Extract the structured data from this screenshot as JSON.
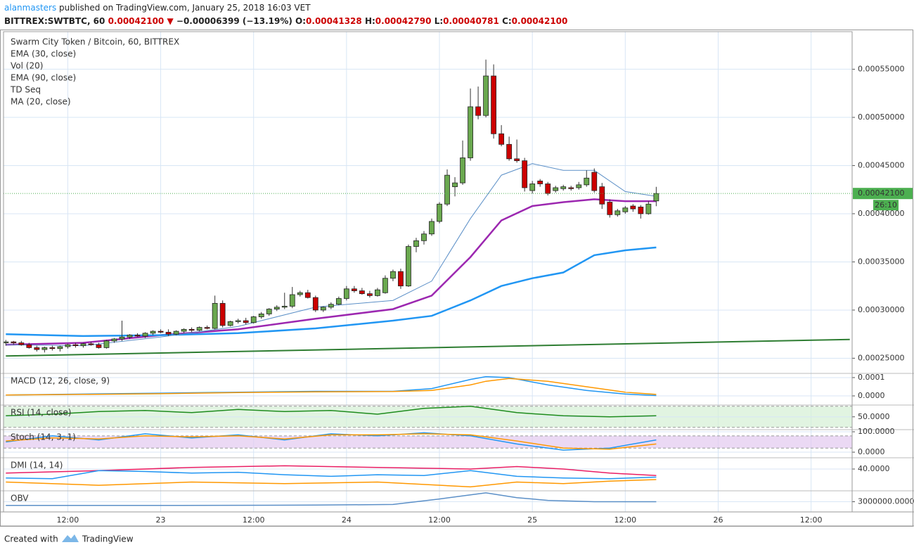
{
  "header": {
    "user": "alanmasters",
    "published": "published on TradingView.com, January 25, 2018 16:03 VET",
    "symbol": "BITTREX:SWTBTC, 60",
    "price": "0.00042100",
    "arrow": "▼",
    "change": "−0.00006399 (−13.19%)",
    "quote": [
      {
        "label": "O:",
        "value": "0.00041328"
      },
      {
        "label": "H:",
        "value": "0.00042790"
      },
      {
        "label": "L:",
        "value": "0.00040781"
      },
      {
        "label": "C:",
        "value": "0.00042100"
      }
    ]
  },
  "chart_data": {
    "type": "candlestick",
    "title": "Swarm City Token / Bitcoin, 60, BITTREX",
    "legend": [
      "EMA (30, close)",
      "Vol (20)",
      "EMA (90, close)",
      "TD Seq",
      "MA (20, close)"
    ],
    "up_color": "#6aa84f",
    "down_color": "#cc0000",
    "xlim": [
      -0.3,
      109.3
    ],
    "xticks": [
      {
        "value": 8,
        "label": "12:00"
      },
      {
        "value": 20,
        "label": "23"
      },
      {
        "value": 32,
        "label": "12:00"
      },
      {
        "value": 44,
        "label": "24"
      },
      {
        "value": 56,
        "label": "12:00"
      },
      {
        "value": 68,
        "label": "25"
      },
      {
        "value": 80,
        "label": "12:00"
      },
      {
        "value": 92,
        "label": "26"
      },
      {
        "value": 104,
        "label": "12:00"
      }
    ],
    "ylim": [
      0.000235,
      0.000589
    ],
    "yticks": [
      {
        "value": 0.00025,
        "label": "0.00025000"
      },
      {
        "value": 0.0003,
        "label": "0.00030000"
      },
      {
        "value": 0.00035,
        "label": "0.00035000"
      },
      {
        "value": 0.0004,
        "label": "0.00040000"
      },
      {
        "value": 0.00045,
        "label": "0.00045000"
      },
      {
        "value": 0.0005,
        "label": "0.00050000"
      },
      {
        "value": 0.00055,
        "label": "0.00055000"
      }
    ],
    "price_tag": "0.00042100",
    "countdown": "26:10",
    "candles": [
      [
        0.000266,
        0.000269,
        0.000263,
        0.000267
      ],
      [
        0.000267,
        0.000268,
        0.000264,
        0.000266
      ],
      [
        0.000266,
        0.000268,
        0.000263,
        0.000264
      ],
      [
        0.000264,
        0.000266,
        0.00026,
        0.000261
      ],
      [
        0.000261,
        0.000263,
        0.000257,
        0.000259
      ],
      [
        0.000259,
        0.000262,
        0.000256,
        0.000261
      ],
      [
        0.000261,
        0.000263,
        0.000258,
        0.00026
      ],
      [
        0.00026,
        0.000263,
        0.000257,
        0.000262
      ],
      [
        0.000262,
        0.000265,
        0.00026,
        0.000264
      ],
      [
        0.000264,
        0.000266,
        0.000261,
        0.000263
      ],
      [
        0.000263,
        0.000266,
        0.000261,
        0.000265
      ],
      [
        0.000265,
        0.000267,
        0.000263,
        0.000264
      ],
      [
        0.000264,
        0.000266,
        0.00026,
        0.000261
      ],
      [
        0.000261,
        0.000269,
        0.00026,
        0.000268
      ],
      [
        0.000268,
        0.000271,
        0.000266,
        0.00027
      ],
      [
        0.00027,
        0.000289,
        0.000268,
        0.000272
      ],
      [
        0.000272,
        0.000275,
        0.00027,
        0.000274
      ],
      [
        0.000274,
        0.000276,
        0.000272,
        0.000273
      ],
      [
        0.000273,
        0.000277,
        0.000271,
        0.000276
      ],
      [
        0.000276,
        0.000279,
        0.000274,
        0.000278
      ],
      [
        0.000278,
        0.00028,
        0.000276,
        0.000277
      ],
      [
        0.000277,
        0.00028,
        0.000273,
        0.000275
      ],
      [
        0.000275,
        0.000279,
        0.000274,
        0.000278
      ],
      [
        0.000278,
        0.000281,
        0.000276,
        0.00028
      ],
      [
        0.00028,
        0.000282,
        0.000277,
        0.000279
      ],
      [
        0.000279,
        0.000283,
        0.000278,
        0.000282
      ],
      [
        0.000282,
        0.000284,
        0.00028,
        0.000281
      ],
      [
        0.000281,
        0.000315,
        0.00028,
        0.000307
      ],
      [
        0.000307,
        0.00031,
        0.000282,
        0.000284
      ],
      [
        0.000284,
        0.000289,
        0.000283,
        0.000288
      ],
      [
        0.000288,
        0.000291,
        0.000286,
        0.000289
      ],
      [
        0.000289,
        0.000292,
        0.000285,
        0.000287
      ],
      [
        0.000287,
        0.000294,
        0.000286,
        0.000293
      ],
      [
        0.000293,
        0.000298,
        0.000291,
        0.000296
      ],
      [
        0.000296,
        0.000302,
        0.000294,
        0.000301
      ],
      [
        0.000301,
        0.000305,
        0.000299,
        0.000303
      ],
      [
        0.000303,
        0.000318,
        0.000301,
        0.000304
      ],
      [
        0.000304,
        0.000324,
        0.000302,
        0.000316
      ],
      [
        0.000316,
        0.00032,
        0.000314,
        0.000318
      ],
      [
        0.000318,
        0.000321,
        0.000312,
        0.000313
      ],
      [
        0.000313,
        0.000315,
        0.000298,
        0.0003
      ],
      [
        0.0003,
        0.000304,
        0.000298,
        0.000303
      ],
      [
        0.000303,
        0.000308,
        0.000301,
        0.000306
      ],
      [
        0.000306,
        0.000314,
        0.000305,
        0.000312
      ],
      [
        0.000312,
        0.000325,
        0.00031,
        0.000322
      ],
      [
        0.000322,
        0.000325,
        0.000318,
        0.00032
      ],
      [
        0.00032,
        0.000323,
        0.000316,
        0.000317
      ],
      [
        0.000317,
        0.00032,
        0.000313,
        0.000315
      ],
      [
        0.000315,
        0.000323,
        0.000314,
        0.000321
      ],
      [
        0.000318,
        0.000336,
        0.000317,
        0.000333
      ],
      [
        0.000333,
        0.000342,
        0.00033,
        0.00034
      ],
      [
        0.00034,
        0.000343,
        0.000322,
        0.000325
      ],
      [
        0.000325,
        0.000368,
        0.000324,
        0.000366
      ],
      [
        0.000366,
        0.000375,
        0.00036,
        0.000372
      ],
      [
        0.000372,
        0.000382,
        0.000368,
        0.000379
      ],
      [
        0.000379,
        0.000395,
        0.000377,
        0.000392
      ],
      [
        0.000392,
        0.000412,
        0.00039,
        0.00041
      ],
      [
        0.00041,
        0.000446,
        0.000408,
        0.00044
      ],
      [
        0.000428,
        0.000438,
        0.000418,
        0.000432
      ],
      [
        0.000432,
        0.000476,
        0.00043,
        0.000458
      ],
      [
        0.000458,
        0.00053,
        0.000455,
        0.000511
      ],
      [
        0.000511,
        0.000532,
        0.000498,
        0.000502
      ],
      [
        0.000502,
        0.00056,
        0.0005,
        0.000543
      ],
      [
        0.000543,
        0.000555,
        0.000478,
        0.000483
      ],
      [
        0.000483,
        0.000492,
        0.00047,
        0.000472
      ],
      [
        0.000472,
        0.00048,
        0.000455,
        0.000457
      ],
      [
        0.000457,
        0.000477,
        0.000453,
        0.000455
      ],
      [
        0.000455,
        0.000458,
        0.000423,
        0.000427
      ],
      [
        0.000424,
        0.000434,
        0.000421,
        0.000431
      ],
      [
        0.000434,
        0.000436,
        0.000428,
        0.000431
      ],
      [
        0.000431,
        0.000433,
        0.000419,
        0.000421
      ],
      [
        0.000424,
        0.000429,
        0.000422,
        0.000427
      ],
      [
        0.000426,
        0.00043,
        0.000424,
        0.000428
      ],
      [
        0.000427,
        0.000429,
        0.000424,
        0.000426
      ],
      [
        0.000427,
        0.000433,
        0.000425,
        0.00043
      ],
      [
        0.00043,
        0.000445,
        0.000428,
        0.000437
      ],
      [
        0.000443,
        0.000447,
        0.000422,
        0.000424
      ],
      [
        0.000428,
        0.000432,
        0.000405,
        0.00041
      ],
      [
        0.000412,
        0.000415,
        0.000396,
        0.000399
      ],
      [
        0.000399,
        0.000405,
        0.000397,
        0.000403
      ],
      [
        0.000402,
        0.000408,
        0.0004,
        0.000406
      ],
      [
        0.000408,
        0.00041,
        0.000402,
        0.000405
      ],
      [
        0.000407,
        0.000409,
        0.000395,
        0.0004
      ],
      [
        0.0004,
        0.000413,
        0.000399,
        0.00041
      ],
      [
        0.00041328,
        0.0004279,
        0.00040781,
        0.000421
      ]
    ],
    "lines": [
      {
        "color": "#9c27b0",
        "x": [
          0,
          10,
          20,
          30,
          40,
          50,
          55,
          60,
          64,
          68,
          72,
          76,
          80,
          84
        ],
        "values": [
          0.000264,
          0.000266,
          0.000274,
          0.00028,
          0.000291,
          0.000301,
          0.000315,
          0.000355,
          0.000393,
          0.000408,
          0.000412,
          0.000415,
          0.000413,
          0.000413
        ]
      },
      {
        "color": "#2196f3",
        "x": [
          0,
          10,
          20,
          30,
          40,
          50,
          55,
          60,
          64,
          68,
          72,
          76,
          80,
          84
        ],
        "values": [
          0.000275,
          0.000273,
          0.000274,
          0.000276,
          0.000281,
          0.000289,
          0.000294,
          0.00031,
          0.000325,
          0.000333,
          0.000339,
          0.000357,
          0.000362,
          0.000365
        ]
      },
      {
        "color": "#5b8fc7",
        "x": [
          0,
          10,
          20,
          30,
          40,
          50,
          55,
          60,
          64,
          68,
          72,
          76,
          80,
          84
        ],
        "values": [
          0.000264,
          0.000263,
          0.000272,
          0.000283,
          0.000303,
          0.00031,
          0.00033,
          0.000395,
          0.00044,
          0.000452,
          0.000445,
          0.000445,
          0.000423,
          0.000418
        ]
      },
      {
        "color": "#2e7d32",
        "x": [
          0,
          109
        ],
        "values": [
          0.0002523,
          0.0002695
        ]
      }
    ],
    "panels": [
      {
        "title": "MACD (12, 26, close, 9)",
        "ylim": [
          -4.6e-05,
          0.000119
        ],
        "yticks": [
          0.0001,
          {
            "value": 0,
            "label": "0.0000"
          }
        ],
        "series": [
          {
            "color": "#2196f3",
            "x": [
              0,
              10,
              20,
              30,
              40,
              50,
              55,
              60,
              62,
              65,
              70,
              75,
              80,
              84
            ],
            "values": [
              5e-06,
              1e-05,
              1.5e-05,
              2e-05,
              2.5e-05,
              2.5e-05,
              4e-05,
              9e-05,
              0.000105,
              0.0001,
              6e-05,
              3e-05,
              1e-05,
              2e-06
            ]
          },
          {
            "color": "#ff9800",
            "x": [
              0,
              10,
              20,
              30,
              40,
              50,
              55,
              60,
              62,
              65,
              70,
              75,
              80,
              84
            ],
            "values": [
              5e-06,
              8e-06,
              1.2e-05,
              1.8e-05,
              2.2e-05,
              2.4e-05,
              3e-05,
              6e-05,
              8e-05,
              9.5e-05,
              8e-05,
              5e-05,
              2e-05,
              8e-06
            ]
          }
        ]
      },
      {
        "title": "RSI (14, close)",
        "ylim": [
          27,
          71
        ],
        "yticks": [
          {
            "value": 50,
            "label": "50.0000"
          }
        ],
        "band": [
          30,
          70
        ],
        "band_color": "#d4f0d4",
        "series": [
          {
            "color": "#1e8c1e",
            "x": [
              0,
              6,
              12,
              18,
              24,
              30,
              36,
              42,
              48,
              54,
              60,
              66,
              72,
              78,
              84
            ],
            "values": [
              52,
              55,
              60,
              62,
              58,
              64,
              60,
              62,
              55,
              66,
              70,
              58,
              52,
              50,
              52
            ]
          }
        ]
      },
      {
        "title": "Stoch (14, 3, 1)",
        "ylim": [
          -24,
          107
        ],
        "yticks": [
          {
            "value": 100,
            "label": "100.0000"
          },
          {
            "value": 0,
            "label": "0.0000"
          }
        ],
        "band": [
          20,
          80
        ],
        "band_color": "#e3c9f0",
        "series": [
          {
            "color": "#2196f3",
            "x": [
              0,
              6,
              12,
              18,
              24,
              30,
              36,
              42,
              48,
              54,
              60,
              66,
              72,
              78,
              84
            ],
            "values": [
              50,
              80,
              60,
              90,
              70,
              85,
              60,
              90,
              80,
              95,
              80,
              40,
              10,
              20,
              60
            ]
          },
          {
            "color": "#ff9800",
            "x": [
              0,
              6,
              12,
              18,
              24,
              30,
              36,
              42,
              48,
              54,
              60,
              66,
              72,
              78,
              84
            ],
            "values": [
              55,
              70,
              65,
              80,
              75,
              80,
              65,
              85,
              85,
              90,
              85,
              55,
              20,
              15,
              40
            ]
          }
        ]
      },
      {
        "title": "DMI (14, 14)",
        "ylim": [
          14,
          53
        ],
        "yticks": [
          {
            "value": 40,
            "label": "40.0000"
          }
        ],
        "series": [
          {
            "color": "#e91e63",
            "x": [
              0,
              12,
              24,
              36,
              48,
              60,
              66,
              72,
              78,
              84
            ],
            "values": [
              35,
              38,
              42,
              44,
              42,
              40,
              43,
              40,
              35,
              32
            ]
          },
          {
            "color": "#2196f3",
            "x": [
              0,
              6,
              12,
              18,
              24,
              30,
              36,
              42,
              48,
              54,
              60,
              66,
              72,
              78,
              84
            ],
            "values": [
              29,
              28,
              38,
              37,
              35,
              36,
              33,
              31,
              33,
              32,
              38,
              31,
              29,
              28,
              30
            ]
          },
          {
            "color": "#ff9800",
            "x": [
              0,
              12,
              24,
              36,
              48,
              60,
              66,
              72,
              78,
              84
            ],
            "values": [
              24,
              20,
              24,
              22,
              24,
              18,
              24,
              22,
              25,
              27
            ]
          }
        ]
      },
      {
        "title": "OBV",
        "ylim": [
          1500000,
          4500000
        ],
        "yticks": [
          {
            "value": 3000000,
            "label": "3000000.0000"
          }
        ],
        "series": [
          {
            "color": "#5b8fc7",
            "x": [
              0,
              20,
              40,
              50,
              56,
              60,
              62,
              66,
              70,
              76,
              84
            ],
            "values": [
              2450000,
              2450000,
              2500000,
              2600000,
              3400000,
              4000000,
              4300000,
              3600000,
              3200000,
              3000000,
              3000000
            ]
          }
        ]
      }
    ]
  },
  "footer": {
    "created": "Created with",
    "brand": "TradingView"
  }
}
